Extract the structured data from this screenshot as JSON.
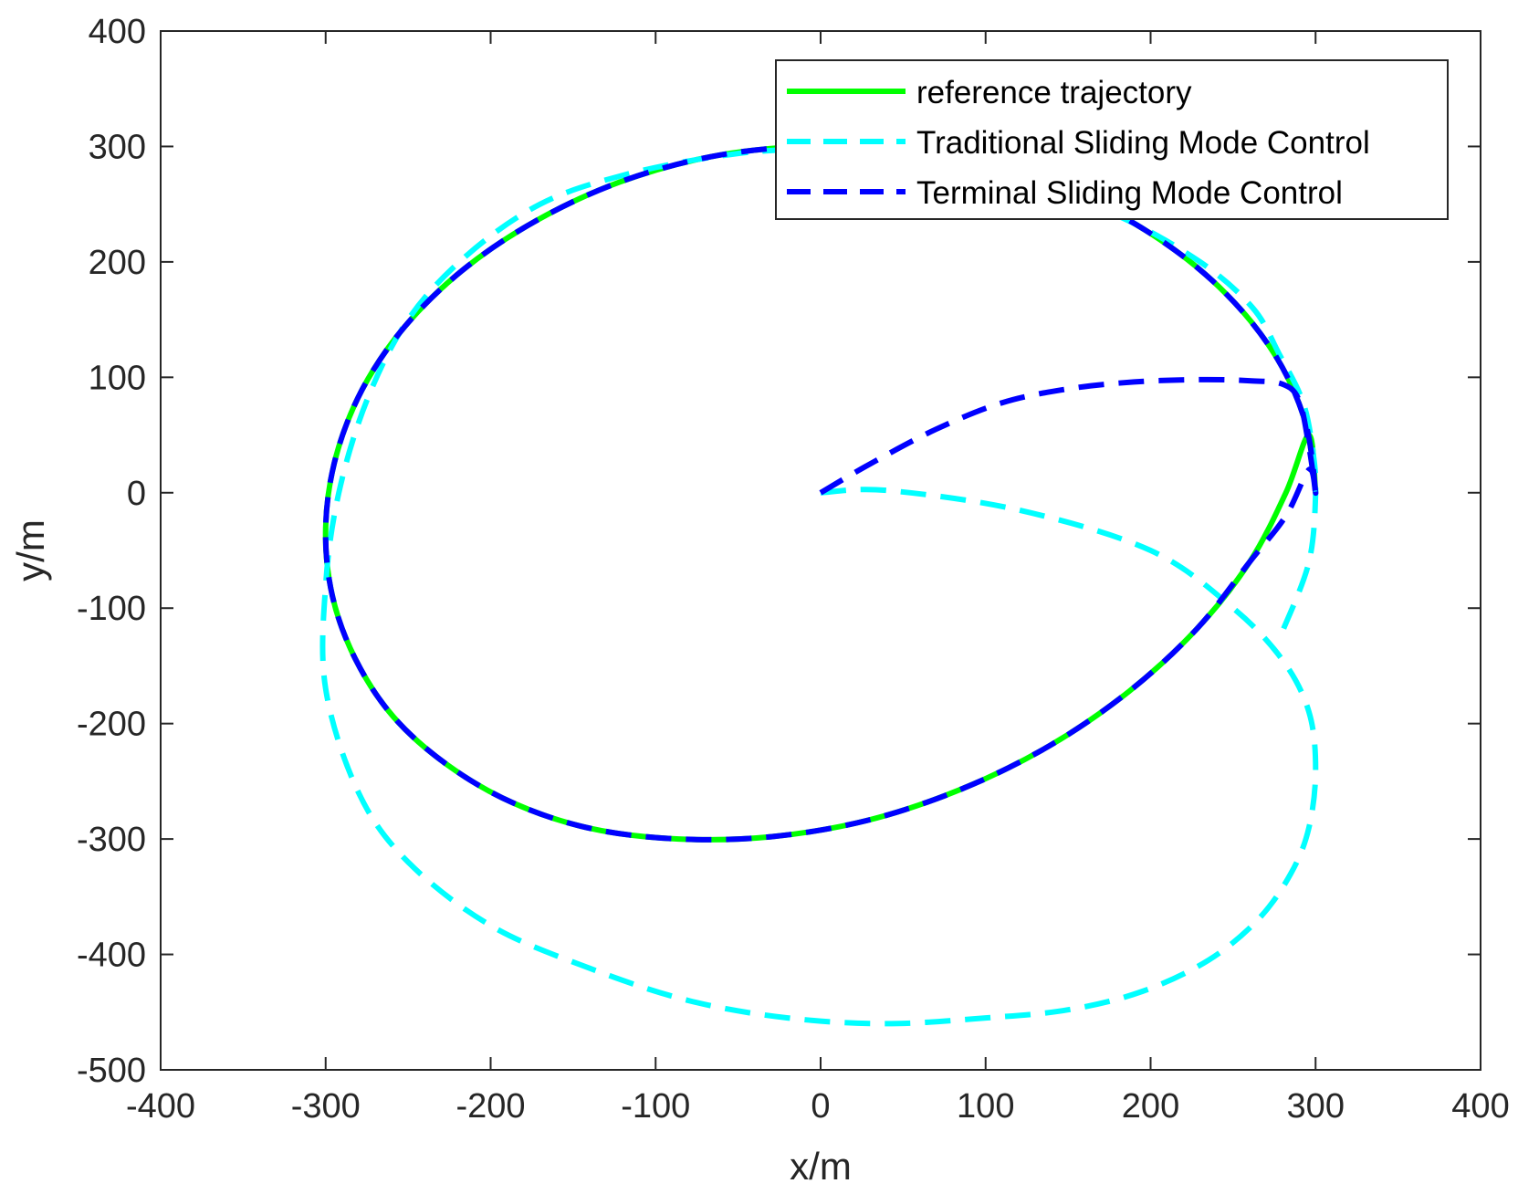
{
  "chart_data": {
    "type": "line",
    "xlabel": "x/m",
    "ylabel": "y/m",
    "xlim": [
      -400,
      400
    ],
    "ylim": [
      -500,
      400
    ],
    "xticks": [
      "-400",
      "-300",
      "-200",
      "-100",
      "0",
      "100",
      "200",
      "300",
      "400"
    ],
    "yticks": [
      "400",
      "300",
      "200",
      "100",
      "0",
      "-100",
      "-200",
      "-300",
      "-400",
      "-500"
    ],
    "grid": false,
    "legend_position": "top-right",
    "series": [
      {
        "name": "reference trajectory",
        "color": "#00ff00",
        "style": "solid",
        "x": [
          300,
          294,
          276,
          246,
          206,
          158,
          104,
          47,
          -10,
          -67,
          -122,
          -172,
          -216,
          -252,
          -278,
          -294,
          -300,
          -296,
          -282,
          -259,
          -226,
          -186,
          -139,
          -86,
          -30,
          28,
          85,
          139,
          187,
          228,
          260,
          282,
          296,
          300
        ],
        "y": [
          0,
          60,
          118,
          172,
          219,
          257,
          284,
          298,
          300,
          291,
          269,
          236,
          194,
          144,
          89,
          30,
          -30,
          -89,
          -144,
          -194,
          -236,
          -269,
          -291,
          -300,
          -298,
          -284,
          -257,
          -219,
          -172,
          -118,
          -60,
          0,
          50,
          0
        ]
      },
      {
        "name": "Traditional Sliding Mode Control",
        "color": "#00ffff",
        "style": "dashed",
        "x": [
          0,
          40,
          120,
          200,
          250,
          280,
          296,
          300,
          296,
          285,
          265,
          235,
          195,
          150,
          100,
          40,
          -20,
          -80,
          -140,
          -200,
          -250,
          -280,
          -300,
          -300,
          -292,
          -275,
          -250,
          -215,
          -170,
          -120,
          -60,
          -10,
          60,
          120,
          180,
          230,
          262,
          278,
          292,
          298,
          300,
          296,
          280
        ],
        "y": [
          0,
          2,
          -15,
          -50,
          -100,
          -145,
          -190,
          -240,
          -290,
          -330,
          -370,
          -405,
          -432,
          -448,
          -455,
          -460,
          -455,
          -440,
          -412,
          -375,
          -320,
          -260,
          -170,
          -80,
          0,
          80,
          150,
          205,
          250,
          275,
          292,
          297,
          290,
          270,
          240,
          200,
          160,
          120,
          80,
          40,
          0,
          -60,
          -120
        ]
      },
      {
        "name": "Terminal Sliding Mode Control",
        "color": "#0000ff",
        "style": "dashed",
        "x": [
          0,
          30,
          70,
          110,
          150,
          190,
          230,
          260,
          280,
          290,
          296,
          300,
          294,
          276,
          246,
          206,
          158,
          104,
          47,
          -10,
          -67,
          -122,
          -172,
          -216,
          -252,
          -278,
          -294,
          -300,
          -296,
          -282,
          -259,
          -226,
          -186,
          -139,
          -86,
          -30,
          28,
          85,
          139,
          187,
          228,
          260,
          282,
          296,
          300
        ],
        "y": [
          0,
          25,
          55,
          78,
          90,
          96,
          98,
          97,
          94,
          80,
          40,
          0,
          60,
          118,
          172,
          219,
          257,
          284,
          298,
          300,
          291,
          269,
          236,
          194,
          144,
          89,
          30,
          -30,
          -89,
          -144,
          -194,
          -236,
          -269,
          -291,
          -300,
          -298,
          -284,
          -257,
          -219,
          -172,
          -118,
          -60,
          -20,
          20,
          0
        ]
      }
    ]
  }
}
